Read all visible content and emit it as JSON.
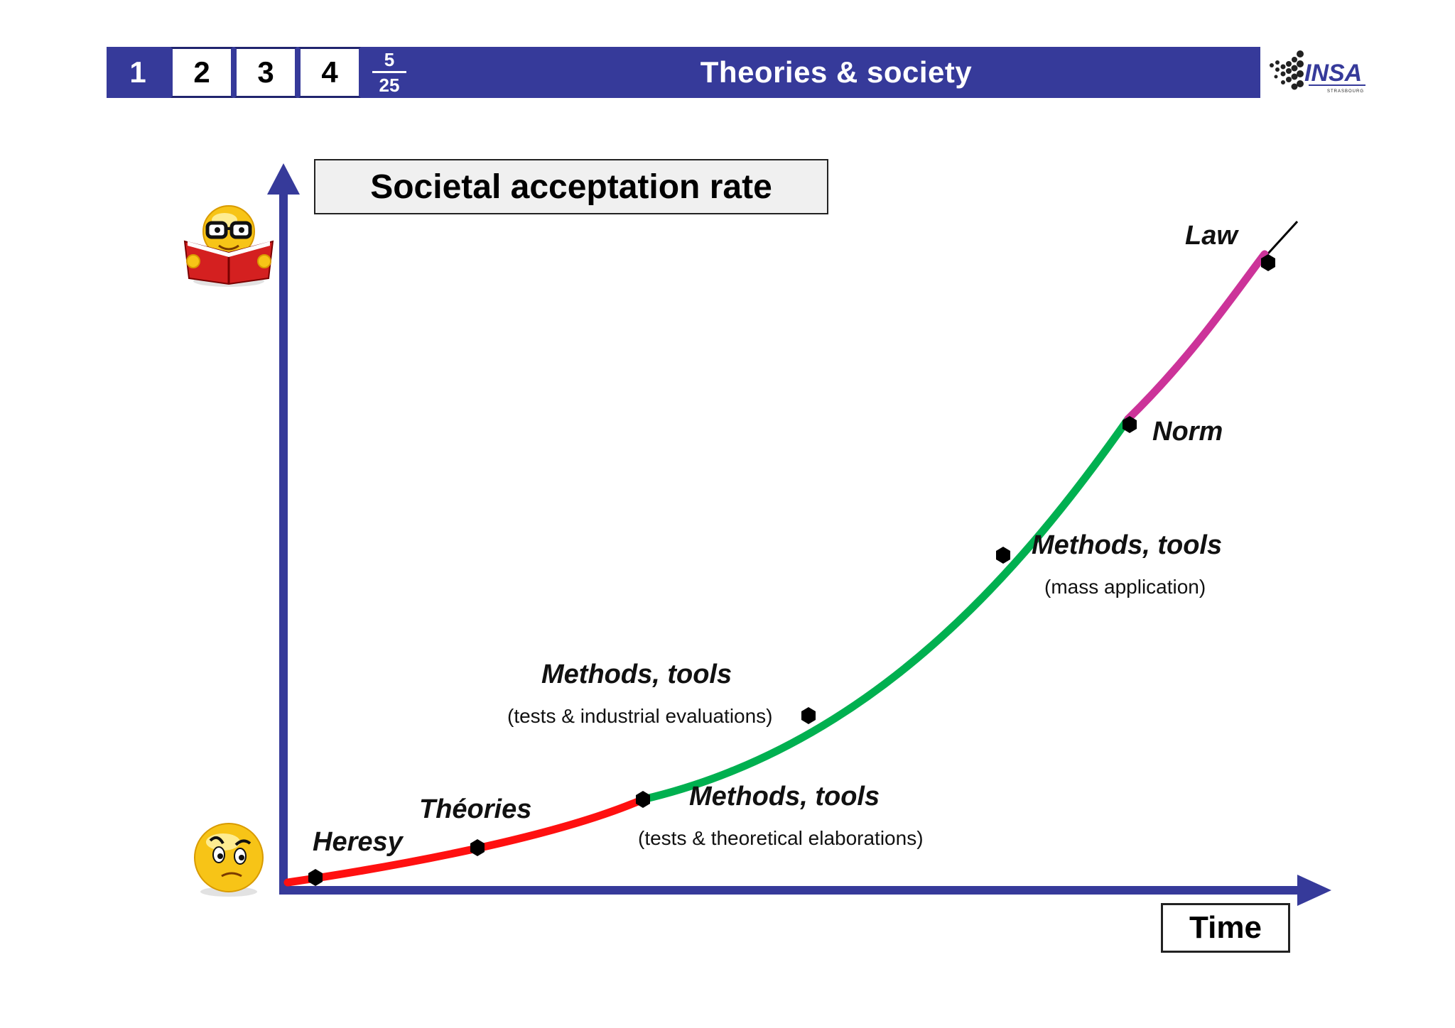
{
  "header": {
    "nav": [
      {
        "label": "1",
        "active": true
      },
      {
        "label": "2",
        "active": false
      },
      {
        "label": "3",
        "active": false
      },
      {
        "label": "4",
        "active": false
      }
    ],
    "page_current": "5",
    "page_total": "25",
    "title": "Theories & society"
  },
  "colors": {
    "header_blue": "#363a9a",
    "axis_blue": "#363a9a",
    "red_segment": "#ff1010",
    "green_segment": "#00b050",
    "magenta_segment": "#cc3399"
  },
  "icons": {
    "logo": "insa-strasbourg-logo",
    "top_emoji": "reading-nerd-emoji-icon",
    "bottom_emoji": "skeptical-emoji-icon"
  },
  "diagram": {
    "y_axis_label": "Societal acceptation rate",
    "x_axis_label": "Time",
    "stages": {
      "heresy": "Heresy",
      "theories": "Théories",
      "methods_theoretical": "Methods, tools",
      "methods_theoretical_sub": "(tests & theoretical elaborations)",
      "methods_industrial": "Methods, tools",
      "methods_industrial_sub": "(tests & industrial evaluations)",
      "methods_mass": "Methods, tools",
      "methods_mass_sub": "(mass application)",
      "norm": "Norm",
      "law": "Law"
    }
  }
}
